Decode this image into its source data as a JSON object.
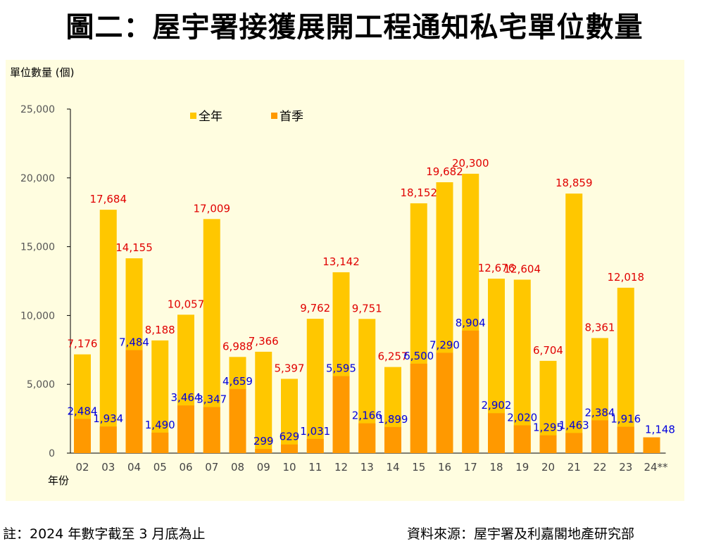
{
  "title": "圖二：屋宇署接獲展開工程通知私宅單位數量",
  "footer": {
    "note": "註：2024 年數字截至 3 月底為止",
    "source": "資料來源：屋宇署及利嘉閣地產研究部"
  },
  "chart_data": {
    "type": "bar",
    "title": "圖二：屋宇署接獲展開工程通知私宅單位數量",
    "ylabel": "單位數量 (個)",
    "xlabel": "年份",
    "ylim": [
      0,
      25000
    ],
    "yticks": [
      "0",
      "5,000",
      "10,000",
      "15,000",
      "20,000",
      "25,000"
    ],
    "ytick_values": [
      0,
      5000,
      10000,
      15000,
      20000,
      25000
    ],
    "legend_position": "top-center",
    "categories": [
      "02",
      "03",
      "04",
      "05",
      "06",
      "07",
      "08",
      "09",
      "10",
      "11",
      "12",
      "13",
      "14",
      "15",
      "16",
      "17",
      "18",
      "19",
      "20",
      "21",
      "22",
      "23",
      "24**"
    ],
    "series": [
      {
        "name": "全年",
        "color": "#FFC700",
        "label_color": "#E00000",
        "values": [
          7176,
          17684,
          14155,
          8188,
          10057,
          17009,
          6988,
          7366,
          5397,
          9762,
          13142,
          9751,
          6257,
          18152,
          19682,
          20300,
          12676,
          12604,
          6704,
          18859,
          8361,
          12018,
          null
        ],
        "labels": [
          "7,176",
          "17,684",
          "14,155",
          "8,188",
          "10,057",
          "17,009",
          "6,988",
          "7,366",
          "5,397",
          "9,762",
          "13,142",
          "9,751",
          "6,257",
          "18,152",
          "19,682",
          "20,300",
          "12,676",
          "12,604",
          "6,704",
          "18,859",
          "8,361",
          "12,018",
          null
        ]
      },
      {
        "name": "首季",
        "color": "#FF9900",
        "label_color": "#0000DD",
        "values": [
          2484,
          1934,
          7484,
          1490,
          3464,
          3347,
          4659,
          299,
          629,
          1031,
          5595,
          2166,
          1899,
          6500,
          7290,
          8904,
          2902,
          2020,
          1295,
          1463,
          2384,
          1916,
          1148
        ],
        "labels": [
          "2,484",
          "1,934",
          "7,484",
          "1,490",
          "3,464",
          "3,347",
          "4,659",
          "299",
          "629",
          "1,031",
          "5,595",
          "2,166",
          "1,899",
          "6,500",
          "7,290",
          "8,904",
          "2,902",
          "2,020",
          "1,295",
          "1,463",
          "2,384",
          "1,916",
          "1,148"
        ]
      }
    ]
  }
}
